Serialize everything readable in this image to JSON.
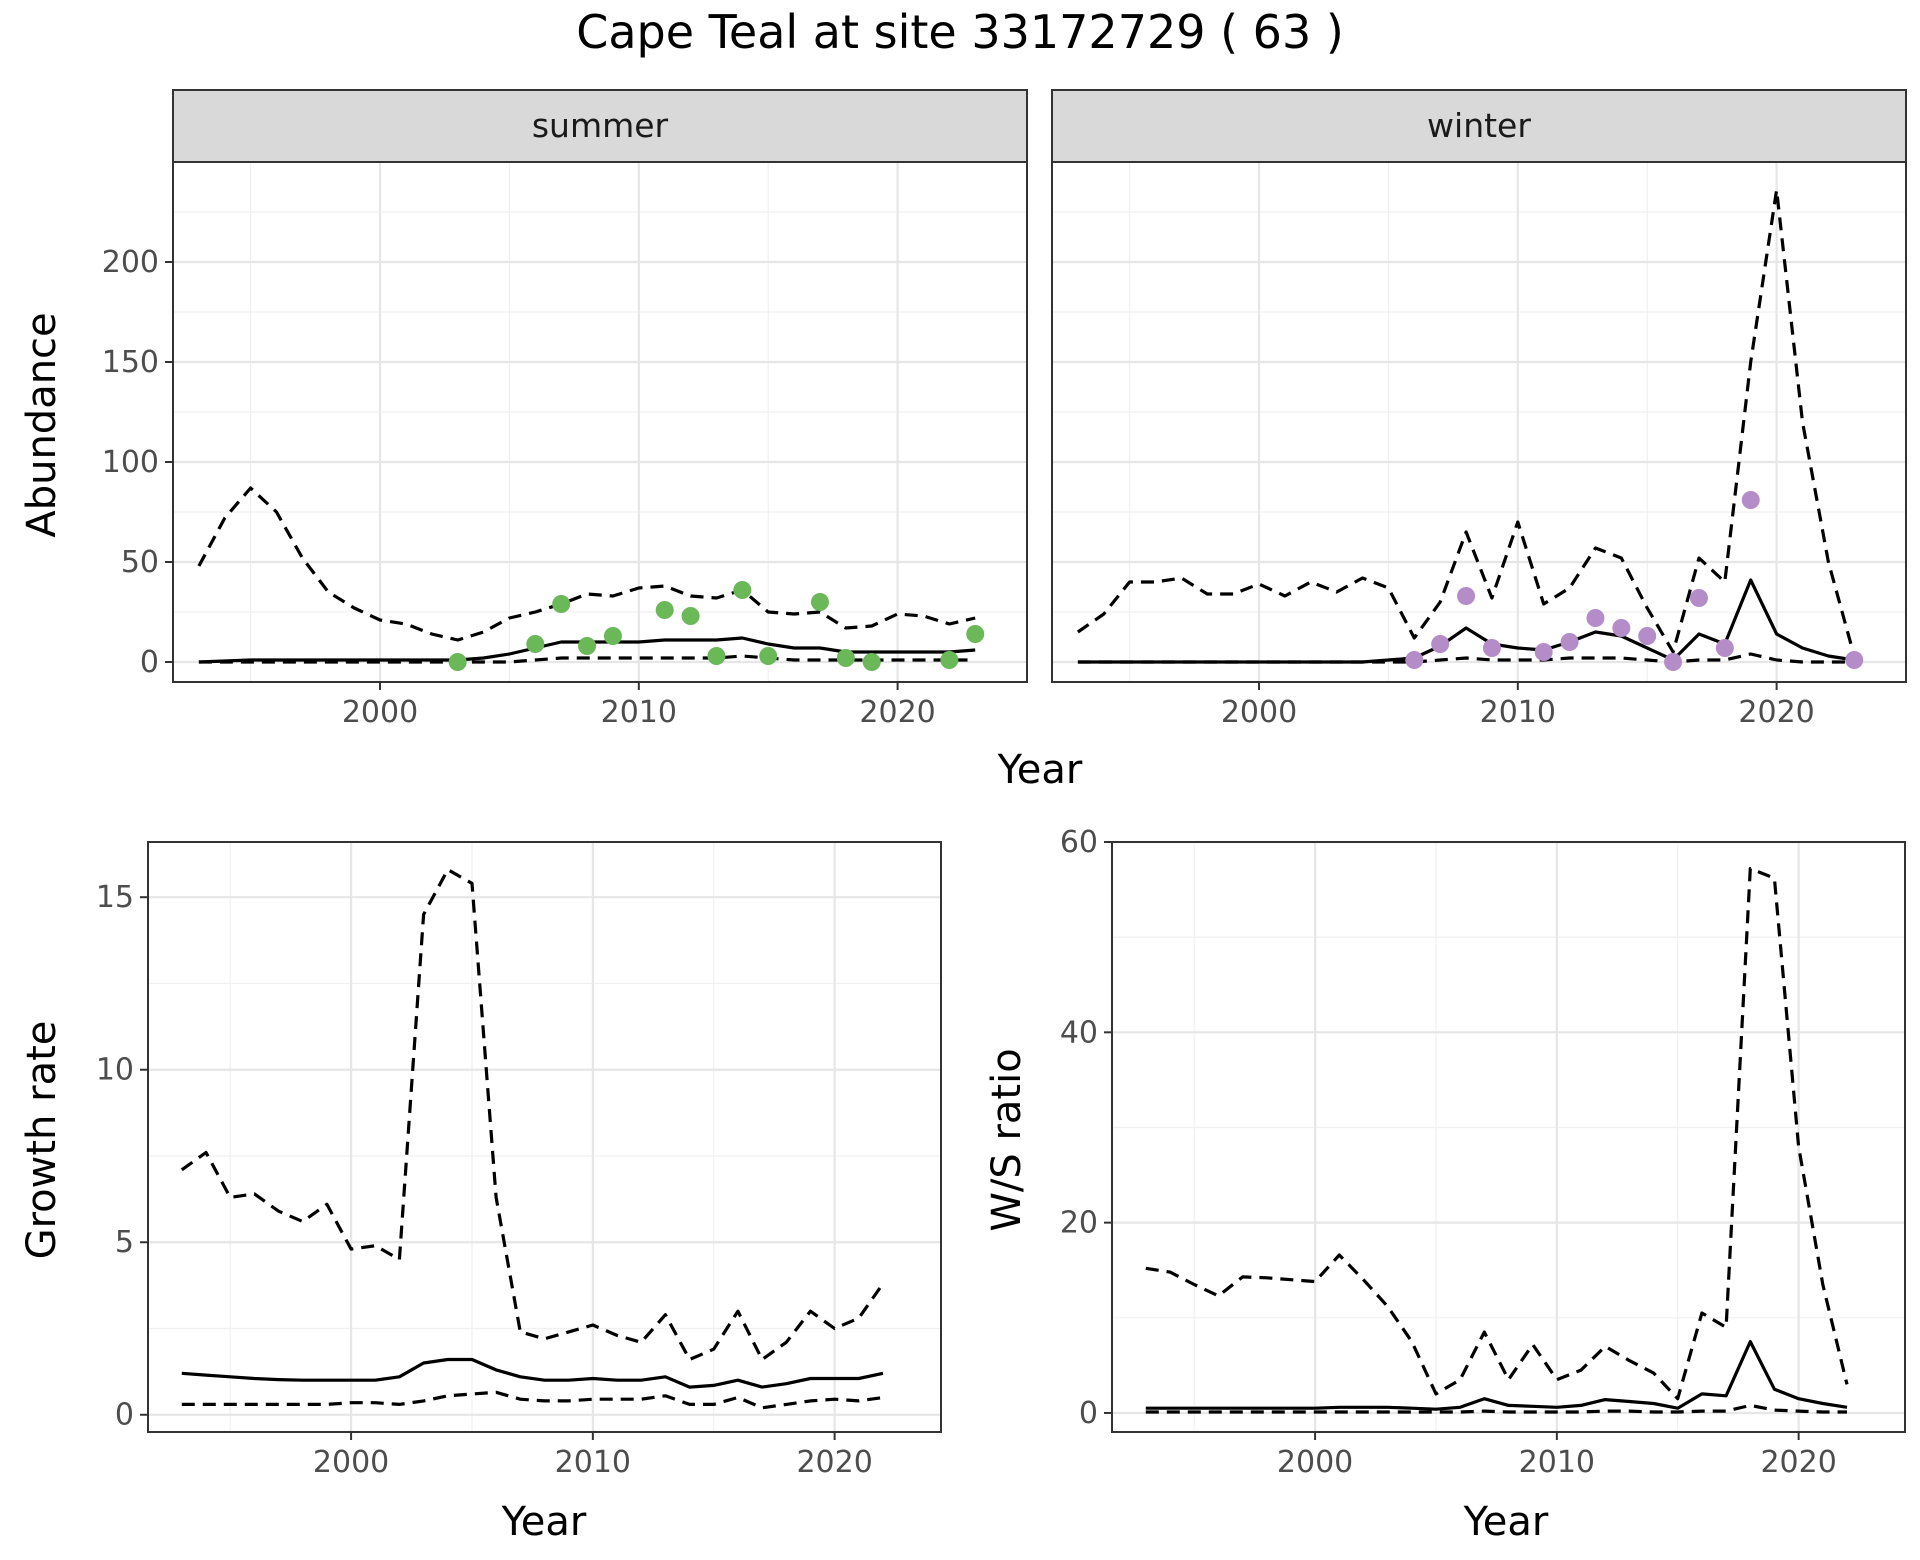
{
  "title": "Cape Teal at site 33172729 ( 63 )",
  "colors": {
    "summer_points": "#6ab858",
    "winter_points": "#b48cc8"
  },
  "chart_data": [
    {
      "type": "line",
      "id": "abundance_summer",
      "facet_label": "summer",
      "xlabel": "Year",
      "ylabel": "Abundance",
      "xlim": [
        1992,
        2025
      ],
      "ylim": [
        -10,
        250
      ],
      "x_ticks": [
        2000,
        2010,
        2020
      ],
      "y_ticks": [
        0,
        50,
        100,
        150,
        200
      ],
      "grid": true,
      "series": [
        {
          "role": "estimate",
          "style": "solid",
          "x": [
            1993,
            1994,
            1995,
            1996,
            1997,
            1998,
            1999,
            2000,
            2001,
            2002,
            2003,
            2004,
            2005,
            2006,
            2007,
            2008,
            2009,
            2010,
            2011,
            2012,
            2013,
            2014,
            2015,
            2016,
            2017,
            2018,
            2019,
            2020,
            2021,
            2022,
            2023
          ],
          "y": [
            0,
            0.5,
            1,
            1,
            1,
            1,
            1,
            1,
            1,
            1,
            1,
            2,
            4,
            7,
            10,
            10,
            10,
            10,
            11,
            11,
            11,
            12,
            9,
            7,
            7,
            5,
            5,
            5,
            5,
            5,
            6
          ]
        },
        {
          "role": "upper",
          "style": "dashed",
          "x": [
            1993,
            1994,
            1995,
            1996,
            1997,
            1998,
            1999,
            2000,
            2001,
            2002,
            2003,
            2004,
            2005,
            2006,
            2007,
            2008,
            2009,
            2010,
            2011,
            2012,
            2013,
            2014,
            2015,
            2016,
            2017,
            2018,
            2019,
            2020,
            2021,
            2022,
            2023
          ],
          "y": [
            48,
            72,
            87,
            75,
            52,
            35,
            27,
            21,
            19,
            14,
            11,
            15,
            22,
            25,
            29,
            34,
            33,
            37,
            38,
            33,
            32,
            36,
            25,
            24,
            25,
            17,
            18,
            24,
            23,
            19,
            22
          ]
        },
        {
          "role": "lower",
          "style": "dashed",
          "x": [
            1993,
            1994,
            1995,
            1996,
            1997,
            1998,
            1999,
            2000,
            2001,
            2002,
            2003,
            2004,
            2005,
            2006,
            2007,
            2008,
            2009,
            2010,
            2011,
            2012,
            2013,
            2014,
            2015,
            2016,
            2017,
            2018,
            2019,
            2020,
            2021,
            2022,
            2023
          ],
          "y": [
            0,
            0,
            0,
            0,
            0,
            0,
            0,
            0,
            0,
            0,
            0,
            0,
            0,
            1,
            2,
            2,
            2,
            2,
            2,
            2,
            2,
            3,
            2,
            1,
            1,
            1,
            1,
            1,
            1,
            1,
            1
          ]
        }
      ],
      "points": {
        "x": [
          2003,
          2006,
          2007,
          2008,
          2009,
          2011,
          2012,
          2013,
          2014,
          2015,
          2017,
          2018,
          2019,
          2022,
          2023
        ],
        "y": [
          0,
          9,
          29,
          8,
          13,
          26,
          23,
          3,
          36,
          3,
          30,
          2,
          0,
          1,
          14
        ]
      }
    },
    {
      "type": "line",
      "id": "abundance_winter",
      "facet_label": "winter",
      "xlim": [
        1992,
        2025
      ],
      "ylim": [
        -10,
        250
      ],
      "x_ticks": [
        2000,
        2010,
        2020
      ],
      "grid": true,
      "series": [
        {
          "role": "estimate",
          "style": "solid",
          "x": [
            1993,
            1994,
            1995,
            1996,
            1997,
            1998,
            1999,
            2000,
            2001,
            2002,
            2003,
            2004,
            2005,
            2006,
            2007,
            2008,
            2009,
            2010,
            2011,
            2012,
            2013,
            2014,
            2015,
            2016,
            2017,
            2018,
            2019,
            2020,
            2021,
            2022,
            2023
          ],
          "y": [
            0,
            0,
            0,
            0,
            0,
            0,
            0,
            0,
            0,
            0,
            0,
            0,
            1,
            2,
            8,
            17,
            9,
            7,
            6,
            10,
            15,
            13,
            7,
            1,
            14,
            9,
            41,
            14,
            7,
            3,
            1
          ]
        },
        {
          "role": "upper",
          "style": "dashed",
          "x": [
            1993,
            1994,
            1995,
            1996,
            1997,
            1998,
            1999,
            2000,
            2001,
            2002,
            2003,
            2004,
            2005,
            2006,
            2007,
            2008,
            2009,
            2010,
            2011,
            2012,
            2013,
            2014,
            2015,
            2016,
            2017,
            2018,
            2019,
            2020,
            2021,
            2022,
            2023
          ],
          "y": [
            15,
            24,
            40,
            40,
            42,
            34,
            34,
            39,
            33,
            40,
            35,
            42,
            37,
            12,
            30,
            65,
            32,
            70,
            29,
            37,
            57,
            52,
            27,
            5,
            52,
            40,
            150,
            236,
            120,
            50,
            3
          ]
        },
        {
          "role": "lower",
          "style": "dashed",
          "x": [
            1993,
            1994,
            1995,
            1996,
            1997,
            1998,
            1999,
            2000,
            2001,
            2002,
            2003,
            2004,
            2005,
            2006,
            2007,
            2008,
            2009,
            2010,
            2011,
            2012,
            2013,
            2014,
            2015,
            2016,
            2017,
            2018,
            2019,
            2020,
            2021,
            2022,
            2023
          ],
          "y": [
            0,
            0,
            0,
            0,
            0,
            0,
            0,
            0,
            0,
            0,
            0,
            0,
            0,
            0,
            1,
            2,
            1,
            1,
            1,
            2,
            2,
            2,
            1,
            0,
            1,
            1,
            4,
            1,
            0,
            0,
            0
          ]
        }
      ],
      "points": {
        "x": [
          2006,
          2007,
          2008,
          2009,
          2011,
          2012,
          2013,
          2014,
          2015,
          2016,
          2017,
          2018,
          2019,
          2023
        ],
        "y": [
          1,
          9,
          33,
          7,
          5,
          10,
          22,
          17,
          13,
          0,
          32,
          7,
          81,
          1
        ]
      }
    },
    {
      "type": "line",
      "id": "growth",
      "xlabel": "Year",
      "ylabel": "Growth rate",
      "xlim": [
        1991.6,
        2024.4
      ],
      "ylim": [
        -0.5,
        16.6
      ],
      "x_ticks": [
        2000,
        2010,
        2020
      ],
      "y_ticks": [
        0,
        5,
        10,
        15
      ],
      "grid": true,
      "series": [
        {
          "role": "estimate",
          "style": "solid",
          "x": [
            1993,
            1994,
            1995,
            1996,
            1997,
            1998,
            1999,
            2000,
            2001,
            2002,
            2003,
            2004,
            2005,
            2006,
            2007,
            2008,
            2009,
            2010,
            2011,
            2012,
            2013,
            2014,
            2015,
            2016,
            2017,
            2018,
            2019,
            2020,
            2021,
            2022
          ],
          "y": [
            1.2,
            1.15,
            1.1,
            1.05,
            1.02,
            1.0,
            1.0,
            1.0,
            1.0,
            1.1,
            1.5,
            1.6,
            1.6,
            1.3,
            1.1,
            1.0,
            1.0,
            1.05,
            1.0,
            1.0,
            1.1,
            0.8,
            0.85,
            1.0,
            0.8,
            0.9,
            1.05,
            1.05,
            1.05,
            1.2
          ]
        },
        {
          "role": "upper",
          "style": "dashed",
          "x": [
            1993,
            1994,
            1995,
            1996,
            1997,
            1998,
            1999,
            2000,
            2001,
            2002,
            2003,
            2004,
            2005,
            2006,
            2007,
            2008,
            2009,
            2010,
            2011,
            2012,
            2013,
            2014,
            2015,
            2016,
            2017,
            2018,
            2019,
            2020,
            2021,
            2022
          ],
          "y": [
            7.1,
            7.6,
            6.3,
            6.4,
            5.9,
            5.6,
            6.1,
            4.8,
            4.9,
            4.5,
            14.5,
            15.8,
            15.4,
            6.3,
            2.4,
            2.2,
            2.4,
            2.6,
            2.3,
            2.1,
            2.9,
            1.6,
            1.9,
            3.0,
            1.6,
            2.1,
            3.0,
            2.5,
            2.8,
            3.8
          ]
        },
        {
          "role": "lower",
          "style": "dashed",
          "x": [
            1993,
            1994,
            1995,
            1996,
            1997,
            1998,
            1999,
            2000,
            2001,
            2002,
            2003,
            2004,
            2005,
            2006,
            2007,
            2008,
            2009,
            2010,
            2011,
            2012,
            2013,
            2014,
            2015,
            2016,
            2017,
            2018,
            2019,
            2020,
            2021,
            2022
          ],
          "y": [
            0.3,
            0.3,
            0.3,
            0.3,
            0.3,
            0.3,
            0.3,
            0.35,
            0.35,
            0.3,
            0.4,
            0.55,
            0.6,
            0.65,
            0.45,
            0.4,
            0.4,
            0.45,
            0.45,
            0.45,
            0.55,
            0.3,
            0.3,
            0.5,
            0.2,
            0.3,
            0.4,
            0.45,
            0.4,
            0.5
          ]
        }
      ]
    },
    {
      "type": "line",
      "id": "ws_ratio",
      "xlabel": "Year",
      "ylabel": "W/S ratio",
      "xlim": [
        1991.6,
        2024.4
      ],
      "ylim": [
        -2,
        60
      ],
      "x_ticks": [
        2000,
        2010,
        2020
      ],
      "y_ticks": [
        0,
        20,
        40,
        60
      ],
      "grid": true,
      "series": [
        {
          "role": "estimate",
          "style": "solid",
          "x": [
            1993,
            1994,
            1995,
            1996,
            1997,
            1998,
            1999,
            2000,
            2001,
            2002,
            2003,
            2004,
            2005,
            2006,
            2007,
            2008,
            2009,
            2010,
            2011,
            2012,
            2013,
            2014,
            2015,
            2016,
            2017,
            2018,
            2019,
            2020,
            2021,
            2022
          ],
          "y": [
            0.5,
            0.5,
            0.5,
            0.5,
            0.5,
            0.5,
            0.5,
            0.5,
            0.6,
            0.6,
            0.6,
            0.5,
            0.4,
            0.6,
            1.5,
            0.8,
            0.7,
            0.6,
            0.8,
            1.4,
            1.2,
            1.0,
            0.5,
            2.0,
            1.8,
            7.5,
            2.5,
            1.5,
            1.0,
            0.6
          ]
        },
        {
          "role": "upper",
          "style": "dashed",
          "x": [
            1993,
            1994,
            1995,
            1996,
            1997,
            1998,
            1999,
            2000,
            2001,
            2002,
            2003,
            2004,
            2005,
            2006,
            2007,
            2008,
            2009,
            2010,
            2011,
            2012,
            2013,
            2014,
            2015,
            2016,
            2017,
            2018,
            2019,
            2020,
            2021,
            2022
          ],
          "y": [
            15.2,
            14.8,
            13.5,
            12.3,
            14.3,
            14.2,
            14.0,
            13.8,
            16.6,
            14.0,
            11.2,
            7.5,
            2.0,
            3.5,
            8.5,
            3.5,
            7.2,
            3.5,
            4.5,
            7.0,
            5.5,
            4.2,
            1.5,
            10.5,
            9.0,
            57.2,
            56.2,
            28.0,
            13.5,
            3.0
          ]
        },
        {
          "role": "lower",
          "style": "dashed",
          "x": [
            1993,
            1994,
            1995,
            1996,
            1997,
            1998,
            1999,
            2000,
            2001,
            2002,
            2003,
            2004,
            2005,
            2006,
            2007,
            2008,
            2009,
            2010,
            2011,
            2012,
            2013,
            2014,
            2015,
            2016,
            2017,
            2018,
            2019,
            2020,
            2021,
            2022
          ],
          "y": [
            0.1,
            0.1,
            0.1,
            0.1,
            0.1,
            0.1,
            0.1,
            0.1,
            0.1,
            0.1,
            0.1,
            0.1,
            0.1,
            0.1,
            0.2,
            0.1,
            0.1,
            0.1,
            0.1,
            0.2,
            0.2,
            0.1,
            0.1,
            0.2,
            0.2,
            0.8,
            0.3,
            0.2,
            0.1,
            0.1
          ]
        }
      ]
    }
  ]
}
